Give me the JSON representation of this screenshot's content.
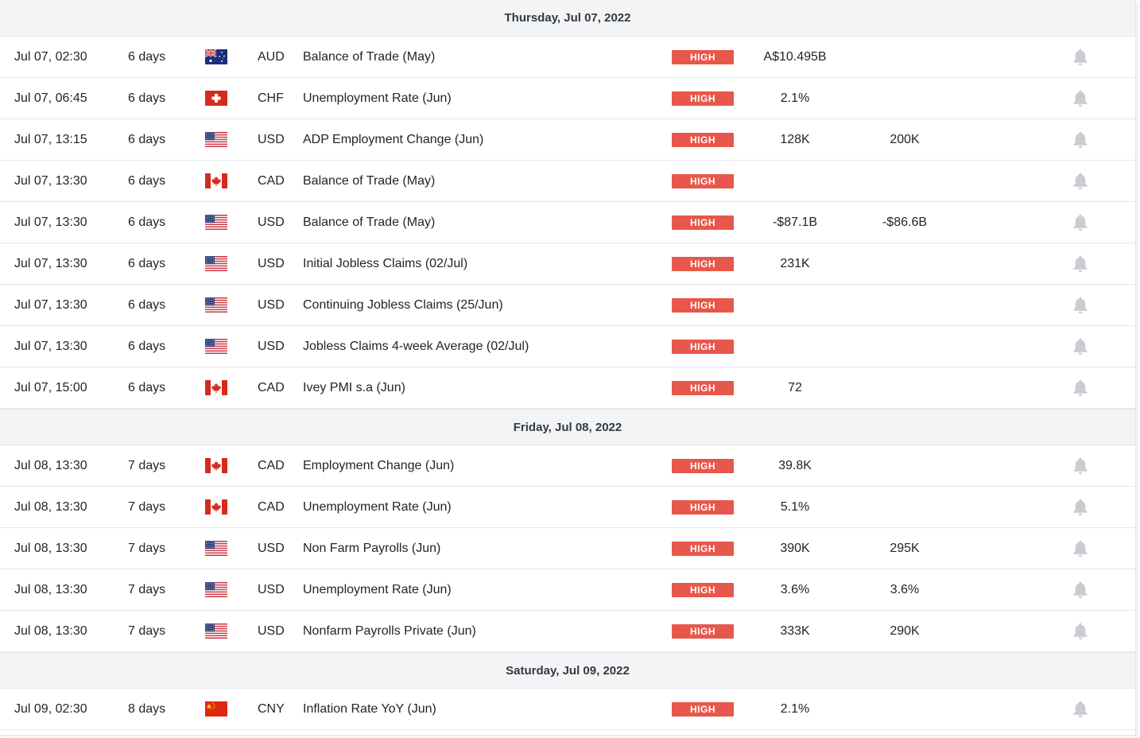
{
  "days": [
    {
      "label": "Thursday, Jul 07, 2022",
      "events": [
        {
          "time": "Jul 07, 02:30",
          "relative": "6 days",
          "country": "au",
          "currency": "AUD",
          "event": "Balance of Trade (May)",
          "importance": "HIGH",
          "actual": "A$10.495B",
          "forecast": ""
        },
        {
          "time": "Jul 07, 06:45",
          "relative": "6 days",
          "country": "ch",
          "currency": "CHF",
          "event": "Unemployment Rate (Jun)",
          "importance": "HIGH",
          "actual": "2.1%",
          "forecast": ""
        },
        {
          "time": "Jul 07, 13:15",
          "relative": "6 days",
          "country": "us",
          "currency": "USD",
          "event": "ADP Employment Change (Jun)",
          "importance": "HIGH",
          "actual": "128K",
          "forecast": "200K"
        },
        {
          "time": "Jul 07, 13:30",
          "relative": "6 days",
          "country": "ca",
          "currency": "CAD",
          "event": "Balance of Trade (May)",
          "importance": "HIGH",
          "actual": "",
          "forecast": ""
        },
        {
          "time": "Jul 07, 13:30",
          "relative": "6 days",
          "country": "us",
          "currency": "USD",
          "event": "Balance of Trade (May)",
          "importance": "HIGH",
          "actual": "-$87.1B",
          "forecast": "-$86.6B"
        },
        {
          "time": "Jul 07, 13:30",
          "relative": "6 days",
          "country": "us",
          "currency": "USD",
          "event": "Initial Jobless Claims (02/Jul)",
          "importance": "HIGH",
          "actual": "231K",
          "forecast": ""
        },
        {
          "time": "Jul 07, 13:30",
          "relative": "6 days",
          "country": "us",
          "currency": "USD",
          "event": "Continuing Jobless Claims (25/Jun)",
          "importance": "HIGH",
          "actual": "",
          "forecast": ""
        },
        {
          "time": "Jul 07, 13:30",
          "relative": "6 days",
          "country": "us",
          "currency": "USD",
          "event": "Jobless Claims 4-week Average (02/Jul)",
          "importance": "HIGH",
          "actual": "",
          "forecast": ""
        },
        {
          "time": "Jul 07, 15:00",
          "relative": "6 days",
          "country": "ca",
          "currency": "CAD",
          "event": "Ivey PMI s.a (Jun)",
          "importance": "HIGH",
          "actual": "72",
          "forecast": ""
        }
      ]
    },
    {
      "label": "Friday, Jul 08, 2022",
      "events": [
        {
          "time": "Jul 08, 13:30",
          "relative": "7 days",
          "country": "ca",
          "currency": "CAD",
          "event": "Employment Change (Jun)",
          "importance": "HIGH",
          "actual": "39.8K",
          "forecast": ""
        },
        {
          "time": "Jul 08, 13:30",
          "relative": "7 days",
          "country": "ca",
          "currency": "CAD",
          "event": "Unemployment Rate (Jun)",
          "importance": "HIGH",
          "actual": "5.1%",
          "forecast": ""
        },
        {
          "time": "Jul 08, 13:30",
          "relative": "7 days",
          "country": "us",
          "currency": "USD",
          "event": "Non Farm Payrolls (Jun)",
          "importance": "HIGH",
          "actual": "390K",
          "forecast": "295K"
        },
        {
          "time": "Jul 08, 13:30",
          "relative": "7 days",
          "country": "us",
          "currency": "USD",
          "event": "Unemployment Rate (Jun)",
          "importance": "HIGH",
          "actual": "3.6%",
          "forecast": "3.6%"
        },
        {
          "time": "Jul 08, 13:30",
          "relative": "7 days",
          "country": "us",
          "currency": "USD",
          "event": "Nonfarm Payrolls Private (Jun)",
          "importance": "HIGH",
          "actual": "333K",
          "forecast": "290K"
        }
      ]
    },
    {
      "label": "Saturday, Jul 09, 2022",
      "events": [
        {
          "time": "Jul 09, 02:30",
          "relative": "8 days",
          "country": "cn",
          "currency": "CNY",
          "event": "Inflation Rate YoY (Jun)",
          "importance": "HIGH",
          "actual": "2.1%",
          "forecast": ""
        }
      ]
    }
  ],
  "colors": {
    "importance_high": "#e8574b",
    "bell": "#c9ccd1",
    "header_bg": "#f3f4f6"
  },
  "icons": {
    "alert": "bell-icon",
    "flag": "country-flag-icon"
  }
}
